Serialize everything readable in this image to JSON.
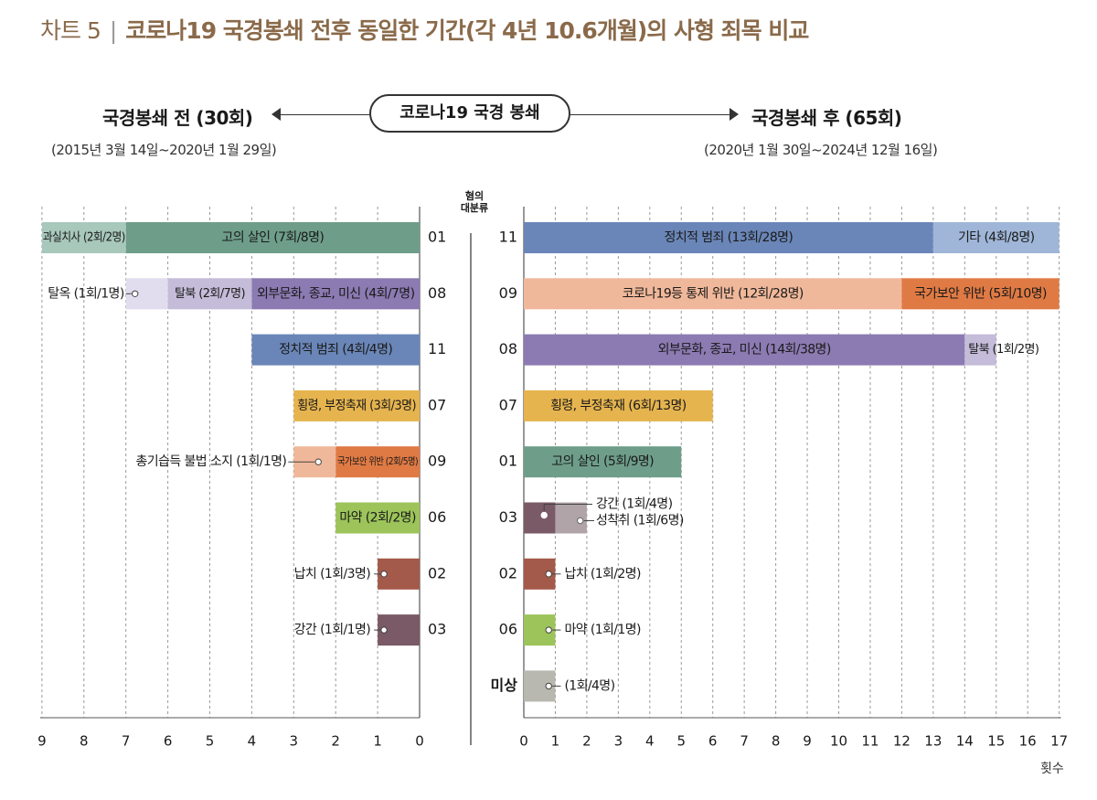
{
  "title": {
    "label": "차트 5",
    "separator": "|",
    "text": "코로나19 국경봉쇄 전후 동일한 기간(각 4년 10.6개월)의 사형 죄목 비교"
  },
  "header": {
    "center": "코로나19 국경 봉쇄",
    "left_title": "국경봉쇄 전 (30회)",
    "left_sub": "(2015년 3월 14일~2020년 1월 29일)",
    "right_title": "국경봉쇄 후 (65회)",
    "right_sub": "(2020년 1월 30일~2024년 12월 16일)",
    "mid_axis_label_1": "혐의",
    "mid_axis_label_2": "대분류",
    "unit_label": "횟수"
  },
  "colors": {
    "01": "#6e9e8a",
    "02": "#a35a4a",
    "03": "#7a5a66",
    "06": "#9cc45a",
    "07": "#e6b44e",
    "08": "#8c7ab2",
    "09": "#e07a44",
    "11": "#6a86b8",
    "misang": "#b8b8b0",
    "01_light": "#a8c8bc",
    "03_light": "#b0a4a8",
    "08_light": "#c4bcd8",
    "08_lighter": "#e2ddee",
    "09_light": "#f0b89a",
    "11_light": "#9fb6d8"
  },
  "chart_data": [
    {
      "type": "bar",
      "title": "국경봉쇄 전 (30회)",
      "orientation": "horizontal",
      "direction": "right-to-left",
      "xlim": [
        0,
        9
      ],
      "xticks": [
        "0",
        "1",
        "2",
        "3",
        "4",
        "5",
        "6",
        "7",
        "8",
        "9"
      ],
      "rows": [
        {
          "cat": "01",
          "segments": [
            {
              "label": "고의 살인 (7회/8명)",
              "value": 7,
              "color": "01"
            },
            {
              "label": "과실치사 (2회/2명)",
              "value": 2,
              "color": "01_light"
            }
          ]
        },
        {
          "cat": "08",
          "segments": [
            {
              "label": "외부문화, 종교, 미신 (4회/7명)",
              "value": 4,
              "color": "08"
            },
            {
              "label": "탈북 (2회/7명)",
              "value": 2,
              "color": "08_light"
            },
            {
              "label": "탈옥 (1회/1명)",
              "value": 1,
              "color": "08_lighter",
              "callout": true
            }
          ]
        },
        {
          "cat": "11",
          "segments": [
            {
              "label": "정치적 범죄 (4회/4명)",
              "value": 4,
              "color": "11"
            }
          ]
        },
        {
          "cat": "07",
          "segments": [
            {
              "label": "횡령, 부정축재 (3회/3명)",
              "value": 3,
              "color": "07"
            }
          ]
        },
        {
          "cat": "09",
          "segments": [
            {
              "label": "국가보안 위반 (2회/5명)",
              "value": 2,
              "color": "09"
            },
            {
              "label": "총기습득 불법 소지 (1회/1명)",
              "value": 1,
              "color": "09_light",
              "callout": true
            }
          ]
        },
        {
          "cat": "06",
          "segments": [
            {
              "label": "마약 (2회/2명)",
              "value": 2,
              "color": "06"
            }
          ]
        },
        {
          "cat": "02",
          "segments": [
            {
              "label": "납치 (1회/3명)",
              "value": 1,
              "color": "02",
              "callout": true
            }
          ]
        },
        {
          "cat": "03",
          "segments": [
            {
              "label": "강간 (1회/1명)",
              "value": 1,
              "color": "03",
              "callout": true
            }
          ]
        }
      ]
    },
    {
      "type": "bar",
      "title": "국경봉쇄 후 (65회)",
      "orientation": "horizontal",
      "direction": "left-to-right",
      "xlim": [
        0,
        17
      ],
      "xlabel": "횟수",
      "xticks": [
        "0",
        "1",
        "2",
        "3",
        "4",
        "5",
        "6",
        "7",
        "8",
        "9",
        "10",
        "11",
        "12",
        "13",
        "14",
        "15",
        "16",
        "17"
      ],
      "rows": [
        {
          "cat": "11",
          "segments": [
            {
              "label": "정치적 범죄 (13회/28명)",
              "value": 13,
              "color": "11"
            },
            {
              "label": "기타 (4회/8명)",
              "value": 4,
              "color": "11_light"
            }
          ]
        },
        {
          "cat": "09",
          "segments": [
            {
              "label": "코로나19등 통제 위반 (12회/28명)",
              "value": 12,
              "color": "09_light"
            },
            {
              "label": "국가보안 위반 (5회/10명)",
              "value": 5,
              "color": "09"
            }
          ]
        },
        {
          "cat": "08",
          "segments": [
            {
              "label": "외부문화, 종교, 미신 (14회/38명)",
              "value": 14,
              "color": "08"
            },
            {
              "label": "탈북 (1회/2명)",
              "value": 1,
              "color": "08_light"
            }
          ]
        },
        {
          "cat": "07",
          "segments": [
            {
              "label": "횡령, 부정축재 (6회/13명)",
              "value": 6,
              "color": "07"
            }
          ]
        },
        {
          "cat": "01",
          "segments": [
            {
              "label": "고의 살인 (5회/9명)",
              "value": 5,
              "color": "01"
            }
          ]
        },
        {
          "cat": "03",
          "segments": [
            {
              "label": "강간 (1회/4명)",
              "value": 1,
              "color": "03",
              "callout": true
            },
            {
              "label": "성착취 (1회/6명)",
              "value": 1,
              "color": "03_light",
              "callout": true
            }
          ]
        },
        {
          "cat": "02",
          "segments": [
            {
              "label": "납치 (1회/2명)",
              "value": 1,
              "color": "02",
              "callout": true
            }
          ]
        },
        {
          "cat": "06",
          "segments": [
            {
              "label": "마약 (1회/1명)",
              "value": 1,
              "color": "06",
              "callout": true
            }
          ]
        },
        {
          "cat": "미상",
          "segments": [
            {
              "label": "(1회/4명)",
              "value": 1,
              "color": "misang",
              "callout": true
            }
          ]
        }
      ]
    }
  ]
}
